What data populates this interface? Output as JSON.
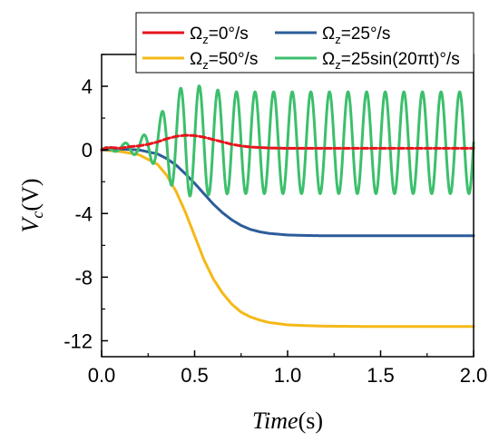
{
  "chart_data": {
    "type": "line",
    "xlabel": {
      "italic": "Time",
      "unit": "(s)"
    },
    "ylabel": {
      "base": "V",
      "sub": "c",
      "unit": "(V)"
    },
    "xlim": [
      0,
      2
    ],
    "ylim": [
      -13,
      6
    ],
    "xticks": [
      0.0,
      0.5,
      1.0,
      1.5,
      2.0
    ],
    "xtick_labels": [
      "0.0",
      "0.5",
      "1.0",
      "1.5",
      "2.0"
    ],
    "yticks": [
      4,
      0,
      -4,
      -8,
      -12
    ],
    "ytick_labels": [
      "4",
      "0",
      "-4",
      "-8",
      "-12"
    ],
    "grid": false,
    "legend_position": "top",
    "series": [
      {
        "name": "Ωz=0°/s",
        "legend_label": {
          "omega": "Ω",
          "sub": "z",
          "rest": "=0°/s"
        },
        "color": "#e8141c",
        "dashed": true,
        "x": [
          0.0,
          0.02,
          0.05,
          0.1,
          0.15,
          0.2,
          0.25,
          0.3,
          0.35,
          0.4,
          0.45,
          0.5,
          0.55,
          0.6,
          0.65,
          0.7,
          0.75,
          0.8,
          0.9,
          1.0,
          1.2,
          1.5,
          2.0
        ],
        "values": [
          0.0,
          0.12,
          0.15,
          0.1,
          0.2,
          0.25,
          0.35,
          0.5,
          0.7,
          0.85,
          0.92,
          0.9,
          0.8,
          0.65,
          0.5,
          0.35,
          0.25,
          0.18,
          0.12,
          0.1,
          0.1,
          0.1,
          0.1
        ]
      },
      {
        "name": "Ωz=25°/s",
        "legend_label": {
          "omega": "Ω",
          "sub": "z",
          "rest": "=25°/s"
        },
        "color": "#2c5d9a",
        "dashed": false,
        "x": [
          0.0,
          0.1,
          0.2,
          0.3,
          0.35,
          0.4,
          0.45,
          0.5,
          0.55,
          0.6,
          0.65,
          0.7,
          0.75,
          0.8,
          0.85,
          0.9,
          1.0,
          1.1,
          1.2,
          1.4,
          1.6,
          2.0
        ],
        "values": [
          0.0,
          0.05,
          0.0,
          -0.25,
          -0.55,
          -0.95,
          -1.5,
          -2.1,
          -2.75,
          -3.4,
          -3.95,
          -4.4,
          -4.75,
          -5.0,
          -5.15,
          -5.25,
          -5.35,
          -5.38,
          -5.4,
          -5.4,
          -5.4,
          -5.4
        ]
      },
      {
        "name": "Ωz=50°/s",
        "legend_label": {
          "omega": "Ω",
          "sub": "z",
          "rest": "=50°/s"
        },
        "color": "#f5b817",
        "dashed": false,
        "x": [
          0.0,
          0.1,
          0.2,
          0.3,
          0.35,
          0.4,
          0.45,
          0.5,
          0.55,
          0.6,
          0.65,
          0.7,
          0.75,
          0.8,
          0.85,
          0.9,
          1.0,
          1.1,
          1.2,
          1.4,
          1.6,
          2.0
        ],
        "values": [
          0.0,
          -0.1,
          -0.3,
          -0.9,
          -1.6,
          -2.6,
          -3.9,
          -5.4,
          -6.9,
          -8.1,
          -9.0,
          -9.7,
          -10.2,
          -10.5,
          -10.7,
          -10.85,
          -11.0,
          -11.05,
          -11.08,
          -11.1,
          -11.1,
          -11.1
        ]
      },
      {
        "name": "Ωz=25sin(20πt)°/s",
        "legend_label": {
          "omega": "Ω",
          "sub": "z",
          "rest": "=25sin(20πt)°/s"
        },
        "color": "#3cbf6c",
        "dashed": false,
        "frequency_hz": 10,
        "x": [
          0.0,
          0.05,
          0.1,
          0.15,
          0.2,
          0.25,
          0.3,
          0.35,
          0.4,
          0.45,
          0.5,
          0.55,
          0.6,
          0.7,
          0.8,
          1.0,
          1.5,
          2.0
        ],
        "offset": [
          0.0,
          0.05,
          0.1,
          0.15,
          0.15,
          0.3,
          0.4,
          0.5,
          0.55,
          0.6,
          0.6,
          0.55,
          0.5,
          0.45,
          0.45,
          0.45,
          0.45,
          0.45
        ],
        "amplitude": [
          0.1,
          0.15,
          0.2,
          0.4,
          0.5,
          0.9,
          1.5,
          2.4,
          3.1,
          3.5,
          3.5,
          3.4,
          3.3,
          3.2,
          3.2,
          3.2,
          3.2,
          3.2
        ]
      }
    ]
  }
}
